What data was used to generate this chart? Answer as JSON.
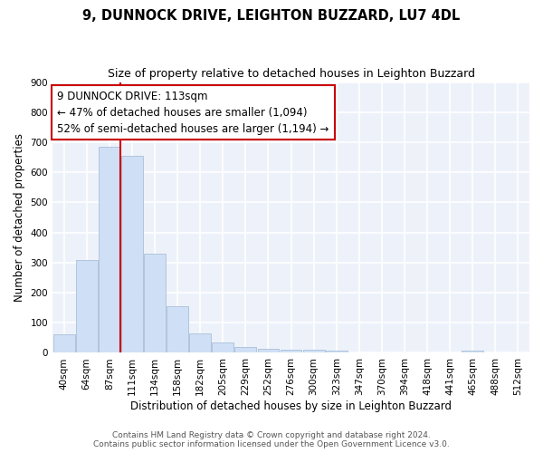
{
  "title1": "9, DUNNOCK DRIVE, LEIGHTON BUZZARD, LU7 4DL",
  "title2": "Size of property relative to detached houses in Leighton Buzzard",
  "xlabel": "Distribution of detached houses by size in Leighton Buzzard",
  "ylabel": "Number of detached properties",
  "categories": [
    "40sqm",
    "64sqm",
    "87sqm",
    "111sqm",
    "134sqm",
    "158sqm",
    "182sqm",
    "205sqm",
    "229sqm",
    "252sqm",
    "276sqm",
    "300sqm",
    "323sqm",
    "347sqm",
    "370sqm",
    "394sqm",
    "418sqm",
    "441sqm",
    "465sqm",
    "488sqm",
    "512sqm"
  ],
  "values": [
    63,
    310,
    685,
    655,
    330,
    155,
    65,
    35,
    18,
    13,
    10,
    10,
    8,
    0,
    0,
    0,
    0,
    0,
    8,
    0,
    0
  ],
  "bar_color": "#cfdff5",
  "bar_edge_color": "#aabfd8",
  "vline_color": "#cc0000",
  "vline_x_index": 3,
  "annotation_line1": "9 DUNNOCK DRIVE: 113sqm",
  "annotation_line2": "← 47% of detached houses are smaller (1,094)",
  "annotation_line3": "52% of semi-detached houses are larger (1,194) →",
  "annotation_box_color": "white",
  "annotation_box_edge_color": "#cc0000",
  "ylim": [
    0,
    900
  ],
  "yticks": [
    0,
    100,
    200,
    300,
    400,
    500,
    600,
    700,
    800,
    900
  ],
  "bg_color": "#edf2fa",
  "grid_color": "#ffffff",
  "title1_fontsize": 10.5,
  "title2_fontsize": 9,
  "ann_fontsize": 8.5,
  "tick_fontsize": 7.5,
  "label_fontsize": 8.5,
  "footer_fontsize": 6.5,
  "footer1": "Contains HM Land Registry data © Crown copyright and database right 2024.",
  "footer2": "Contains public sector information licensed under the Open Government Licence v3.0."
}
